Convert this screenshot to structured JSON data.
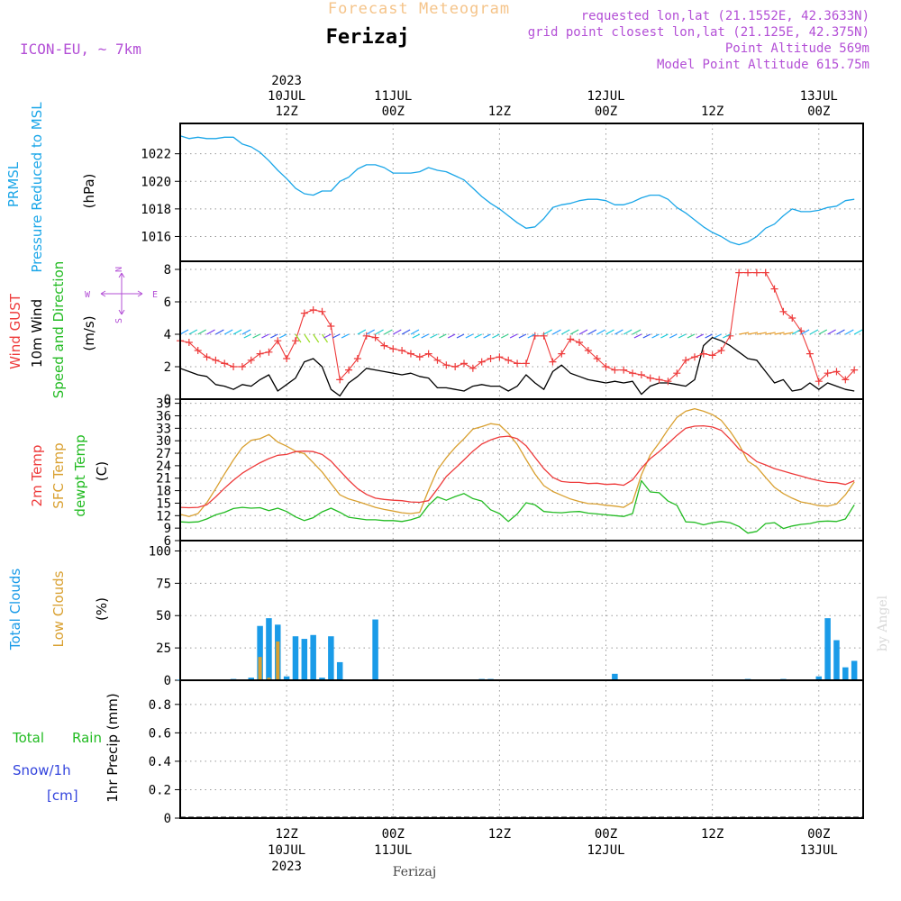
{
  "header": {
    "title": "Forecast Meteogram",
    "location": "Ferizaj",
    "model": "ICON-EU, ~ 7km",
    "requested": "requested lon,lat (21.1552E, 42.3633N)",
    "grid_point": "grid point closest lon,lat (21.125E, 42.375N)",
    "point_altitude": "Point Altitude 569m",
    "model_altitude": "Model Point Altitude 615.75m",
    "footer_location": "Ferizaj",
    "credit": "by Angel"
  },
  "time_axis": {
    "top": [
      {
        "t": 12,
        "lines": [
          "2023",
          "10JUL",
          "12Z"
        ]
      },
      {
        "t": 24,
        "lines": [
          "11JUL",
          "00Z"
        ]
      },
      {
        "t": 36,
        "lines": [
          "12Z"
        ]
      },
      {
        "t": 48,
        "lines": [
          "12JUL",
          "00Z"
        ]
      },
      {
        "t": 60,
        "lines": [
          "12Z"
        ]
      },
      {
        "t": 72,
        "lines": [
          "13JUL",
          "00Z"
        ]
      }
    ],
    "bottom": [
      {
        "t": 12,
        "lines": [
          "12Z",
          "10JUL",
          "2023"
        ]
      },
      {
        "t": 24,
        "lines": [
          "00Z",
          "11JUL"
        ]
      },
      {
        "t": 36,
        "lines": [
          "12Z"
        ]
      },
      {
        "t": 48,
        "lines": [
          "00Z",
          "12JUL"
        ]
      },
      {
        "t": 60,
        "lines": [
          "12Z"
        ]
      },
      {
        "t": 72,
        "lines": [
          "00Z",
          "13JUL"
        ]
      }
    ]
  },
  "labels": {
    "p1_a": "PRMSL",
    "p1_b": "Pressure Reduced to MSL",
    "p1_unit": "(hPa)",
    "p2_a": "Wind GUST",
    "p2_b": "10m Wind",
    "p2_c": "Speed and Direction",
    "p2_unit": "(m/s)",
    "compass_n": "N",
    "compass_s": "S",
    "compass_w": "W",
    "compass_e": "E",
    "p3_a": "2m Temp",
    "p3_b": "SFC Temp",
    "p3_c": "dewpt Temp",
    "p3_unit": "(C)",
    "p4_a": "Total Clouds",
    "p4_b": "Low Clouds",
    "p4_unit": "(%)",
    "p5_a": "Total",
    "p5_b": "Rain",
    "p5_c": "Snow/1h",
    "p5_d": "[cm]",
    "p5_unit": "1hr Precip (mm)"
  },
  "colors": {
    "pressure": "#1aa6e8",
    "gust": "#ee3b3b",
    "wind": "#000000",
    "temp2m": "#ee3b3b",
    "sfc": "#d9a030",
    "dewpt": "#22bb22",
    "total_clouds": "#1a9be8",
    "low_clouds": "#d9a030",
    "rain": "#22bb22",
    "snow": "#3344dd",
    "header_orange": "#f5c48a",
    "header_purple": "#b34fd6"
  },
  "chart_data": [
    {
      "type": "line",
      "name": "pressure",
      "title": "PRMSL Pressure Reduced to MSL",
      "ylabel": "(hPa)",
      "yticks": [
        1016,
        1018,
        1020,
        1022
      ],
      "ylim": [
        1014.2,
        1024.2
      ],
      "x_hours": [
        0,
        1,
        2,
        3,
        4,
        5,
        6,
        7,
        8,
        9,
        10,
        11,
        12,
        13,
        14,
        15,
        16,
        17,
        18,
        19,
        20,
        21,
        22,
        23,
        24,
        25,
        26,
        27,
        28,
        29,
        30,
        31,
        32,
        33,
        34,
        35,
        36,
        37,
        38,
        39,
        40,
        41,
        42,
        43,
        44,
        45,
        46,
        47,
        48,
        49,
        50,
        51,
        52,
        53,
        54,
        55,
        56,
        57,
        58,
        59,
        60,
        61,
        62,
        63,
        64,
        65,
        66,
        67,
        68,
        69,
        70,
        71,
        72,
        73,
        74,
        75,
        76
      ],
      "series": [
        {
          "name": "PRMSL",
          "values": [
            1023.3,
            1023.1,
            1023.2,
            1023.1,
            1023.1,
            1023.2,
            1023.2,
            1022.7,
            1022.5,
            1022.1,
            1021.5,
            1020.8,
            1020.2,
            1019.5,
            1019.1,
            1019.0,
            1019.3,
            1019.3,
            1020.0,
            1020.3,
            1020.9,
            1021.2,
            1021.2,
            1021.0,
            1020.6,
            1020.6,
            1020.6,
            1020.7,
            1021.0,
            1020.8,
            1020.7,
            1020.4,
            1020.1,
            1019.5,
            1018.9,
            1018.4,
            1018.0,
            1017.5,
            1017.0,
            1016.6,
            1016.7,
            1017.3,
            1018.1,
            1018.3,
            1018.4,
            1018.6,
            1018.7,
            1018.7,
            1018.6,
            1018.3,
            1018.3,
            1018.5,
            1018.8,
            1019.0,
            1019.0,
            1018.7,
            1018.1,
            1017.7,
            1017.2,
            1016.7,
            1016.3,
            1016.0,
            1015.6,
            1015.4,
            1015.6,
            1016.0,
            1016.6,
            1016.9,
            1017.5,
            1018.0,
            1017.8,
            1017.8,
            1017.9,
            1018.1,
            1018.2,
            1018.6,
            1018.7
          ]
        }
      ]
    },
    {
      "type": "line",
      "name": "wind",
      "title": "Wind GUST / 10m Wind Speed and Direction",
      "ylabel": "(m/s)",
      "yticks": [
        0,
        2,
        4,
        6,
        8
      ],
      "ylim": [
        0,
        8.5
      ],
      "x_hours": [
        0,
        1,
        2,
        3,
        4,
        5,
        6,
        7,
        8,
        9,
        10,
        11,
        12,
        13,
        14,
        15,
        16,
        17,
        18,
        19,
        20,
        21,
        22,
        23,
        24,
        25,
        26,
        27,
        28,
        29,
        30,
        31,
        32,
        33,
        34,
        35,
        36,
        37,
        38,
        39,
        40,
        41,
        42,
        43,
        44,
        45,
        46,
        47,
        48,
        49,
        50,
        51,
        52,
        53,
        54,
        55,
        56,
        57,
        58,
        59,
        60,
        61,
        62,
        63,
        64,
        65,
        66,
        67,
        68,
        69,
        70,
        71,
        72,
        73,
        74,
        75,
        76
      ],
      "series": [
        {
          "name": "Wind GUST",
          "values": [
            3.6,
            3.5,
            3.0,
            2.6,
            2.4,
            2.2,
            2.0,
            2.0,
            2.4,
            2.8,
            2.9,
            3.6,
            2.5,
            3.6,
            5.3,
            5.5,
            5.4,
            4.5,
            1.2,
            1.8,
            2.5,
            3.9,
            3.8,
            3.3,
            3.1,
            3.0,
            2.8,
            2.6,
            2.8,
            2.4,
            2.1,
            2.0,
            2.2,
            1.9,
            2.3,
            2.5,
            2.6,
            2.4,
            2.2,
            2.2,
            3.9,
            3.9,
            2.3,
            2.8,
            3.7,
            3.5,
            3.0,
            2.5,
            2.0,
            1.8,
            1.8,
            1.6,
            1.5,
            1.3,
            1.2,
            1.1,
            1.6,
            2.4,
            2.6,
            2.8,
            2.7,
            3.0,
            3.9,
            7.8,
            7.8,
            7.8,
            7.8,
            6.8,
            5.4,
            5.0,
            4.2,
            2.8,
            1.1,
            1.6,
            1.7,
            1.2,
            1.8
          ]
        },
        {
          "name": "10m Wind",
          "values": [
            1.9,
            1.7,
            1.5,
            1.4,
            0.9,
            0.8,
            0.6,
            0.9,
            0.8,
            1.2,
            1.5,
            0.5,
            0.9,
            1.3,
            2.3,
            2.5,
            2.0,
            0.6,
            0.2,
            1.0,
            1.4,
            1.9,
            1.8,
            1.7,
            1.6,
            1.5,
            1.6,
            1.4,
            1.3,
            0.7,
            0.7,
            0.6,
            0.5,
            0.8,
            0.9,
            0.8,
            0.8,
            0.5,
            0.8,
            1.5,
            1.0,
            0.6,
            1.7,
            2.1,
            1.6,
            1.4,
            1.2,
            1.1,
            1.0,
            1.1,
            1.0,
            1.1,
            0.3,
            0.8,
            1.0,
            1.0,
            0.9,
            0.8,
            1.2,
            3.3,
            3.8,
            3.6,
            3.3,
            2.9,
            2.5,
            2.4,
            1.7,
            1.0,
            1.2,
            0.5,
            0.6,
            1.0,
            0.6,
            1.0,
            0.8,
            0.6,
            0.5
          ]
        }
      ],
      "direction_arrows": "shown as colored barbs along y=4"
    },
    {
      "type": "line",
      "name": "temperature",
      "title": "2m Temp / SFC Temp / dewpt Temp",
      "ylabel": "(C)",
      "yticks": [
        6,
        9,
        12,
        15,
        18,
        21,
        24,
        27,
        30,
        33,
        36,
        39
      ],
      "ylim": [
        6,
        40
      ],
      "x_hours": [
        0,
        1,
        2,
        3,
        4,
        5,
        6,
        7,
        8,
        9,
        10,
        11,
        12,
        13,
        14,
        15,
        16,
        17,
        18,
        19,
        20,
        21,
        22,
        23,
        24,
        25,
        26,
        27,
        28,
        29,
        30,
        31,
        32,
        33,
        34,
        35,
        36,
        37,
        38,
        39,
        40,
        41,
        42,
        43,
        44,
        45,
        46,
        47,
        48,
        49,
        50,
        51,
        52,
        53,
        54,
        55,
        56,
        57,
        58,
        59,
        60,
        61,
        62,
        63,
        64,
        65,
        66,
        67,
        68,
        69,
        70,
        71,
        72,
        73,
        74,
        75,
        76
      ],
      "series": [
        {
          "name": "2m Temp",
          "values": [
            14.0,
            13.9,
            14.0,
            14.6,
            16.5,
            18.6,
            20.5,
            22.2,
            23.5,
            24.7,
            25.7,
            26.5,
            26.7,
            27.4,
            27.5,
            27.4,
            26.7,
            25.1,
            22.8,
            20.5,
            18.5,
            17.1,
            16.2,
            15.9,
            15.7,
            15.6,
            15.3,
            15.2,
            15.6,
            18.4,
            21.4,
            23.4,
            25.4,
            27.5,
            29.2,
            30.2,
            30.9,
            31.1,
            30.5,
            28.8,
            26.0,
            23.3,
            21.2,
            20.2,
            20.0,
            20.0,
            19.7,
            19.8,
            19.5,
            19.6,
            19.3,
            20.6,
            23.4,
            25.7,
            27.4,
            29.3,
            31.3,
            33.0,
            33.5,
            33.6,
            33.3,
            32.5,
            30.4,
            28.0,
            26.7,
            25.0,
            24.2,
            23.3,
            22.7,
            22.1,
            21.5,
            20.9,
            20.4,
            20.0,
            19.9,
            19.5,
            20.4
          ]
        },
        {
          "name": "SFC Temp",
          "values": [
            12.3,
            11.8,
            12.5,
            15.1,
            18.5,
            22.0,
            25.4,
            28.4,
            30.1,
            30.5,
            31.5,
            29.7,
            28.7,
            27.5,
            26.9,
            24.7,
            22.5,
            19.7,
            17.0,
            16.0,
            15.4,
            14.7,
            14.0,
            13.5,
            13.1,
            12.7,
            12.5,
            12.8,
            18.1,
            23.0,
            25.9,
            28.4,
            30.5,
            32.8,
            33.4,
            34.1,
            33.8,
            31.8,
            29.1,
            25.5,
            22.0,
            19.2,
            17.8,
            16.9,
            16.0,
            15.4,
            14.9,
            14.8,
            14.5,
            14.3,
            14.0,
            15.3,
            21.8,
            26.6,
            29.5,
            32.7,
            35.6,
            37.1,
            37.7,
            37.1,
            36.3,
            34.9,
            32.3,
            29.1,
            25.1,
            23.7,
            21.2,
            18.8,
            17.3,
            16.2,
            15.3,
            14.9,
            14.4,
            14.3,
            14.8,
            17.0,
            20.1
          ]
        },
        {
          "name": "dewpt Temp",
          "values": [
            10.5,
            10.4,
            10.5,
            11.2,
            12.2,
            12.8,
            13.7,
            14.0,
            13.8,
            13.9,
            13.2,
            13.8,
            13.0,
            11.7,
            10.8,
            11.5,
            12.9,
            13.8,
            12.8,
            11.6,
            11.3,
            11.0,
            11.0,
            10.8,
            10.8,
            10.6,
            11.0,
            11.7,
            14.5,
            16.5,
            15.7,
            16.6,
            17.3,
            16.1,
            15.5,
            13.4,
            12.5,
            10.6,
            12.4,
            15.1,
            14.6,
            13.0,
            12.8,
            12.7,
            12.9,
            13.0,
            12.6,
            12.4,
            12.2,
            12.0,
            11.8,
            12.5,
            20.4,
            17.7,
            17.5,
            15.5,
            14.5,
            10.5,
            10.4,
            9.8,
            10.3,
            10.6,
            10.3,
            9.4,
            7.8,
            8.2,
            10.1,
            10.3,
            8.9,
            9.5,
            9.9,
            10.1,
            10.6,
            10.7,
            10.6,
            11.2,
            14.6
          ]
        }
      ]
    },
    {
      "type": "bar",
      "name": "clouds",
      "title": "Total Clouds / Low Clouds",
      "ylabel": "(%)",
      "yticks": [
        0,
        25,
        50,
        75,
        100
      ],
      "ylim": [
        0,
        108
      ],
      "x_hours": [
        0,
        1,
        2,
        3,
        4,
        5,
        6,
        7,
        8,
        9,
        10,
        11,
        12,
        13,
        14,
        15,
        16,
        17,
        18,
        19,
        20,
        21,
        22,
        23,
        24,
        25,
        26,
        27,
        28,
        29,
        30,
        31,
        32,
        33,
        34,
        35,
        36,
        37,
        38,
        39,
        40,
        41,
        42,
        43,
        44,
        45,
        46,
        47,
        48,
        49,
        50,
        51,
        52,
        53,
        54,
        55,
        56,
        57,
        58,
        59,
        60,
        61,
        62,
        63,
        64,
        65,
        66,
        67,
        68,
        69,
        70,
        71,
        72,
        73,
        74,
        75,
        76
      ],
      "series": [
        {
          "name": "Total Clouds",
          "values": [
            0.5,
            0.5,
            0.5,
            0.5,
            0.5,
            0.5,
            1,
            0.5,
            2,
            42,
            48,
            43,
            3,
            34,
            32,
            35,
            2,
            34,
            14,
            0.5,
            0.5,
            0.5,
            47,
            0.5,
            0.5,
            0.5,
            0.5,
            0.5,
            0.5,
            0.5,
            0.5,
            0.5,
            0.5,
            0.5,
            1,
            1,
            0.5,
            0.5,
            0.5,
            0.5,
            0.5,
            0.5,
            0.5,
            0.5,
            0.5,
            0.5,
            0.5,
            0.5,
            0.5,
            5,
            0.5,
            0.5,
            0.5,
            0.5,
            0.5,
            0.5,
            0.5,
            0.5,
            0.5,
            0.5,
            0.5,
            0.5,
            0.5,
            0.5,
            1,
            0.5,
            0.5,
            0.5,
            1,
            0.5,
            0.5,
            0.5,
            3,
            48,
            31,
            10,
            15
          ]
        },
        {
          "name": "Low Clouds",
          "values": [
            0,
            0,
            0,
            0,
            0,
            0,
            0,
            0,
            0,
            18,
            2,
            30,
            0,
            0,
            0,
            0,
            0,
            0,
            0,
            0,
            0,
            0,
            0,
            0,
            0,
            0,
            0,
            0,
            0,
            0,
            0,
            0,
            0,
            0,
            0,
            0,
            0,
            0,
            0,
            0,
            0,
            0,
            0,
            0,
            0,
            0,
            0,
            0,
            0,
            0,
            0,
            0,
            0,
            0,
            0,
            0,
            0,
            0,
            0,
            0,
            0,
            0,
            0,
            0,
            0,
            0,
            0,
            0,
            0,
            0,
            0,
            0,
            0,
            0,
            0,
            0,
            0
          ]
        }
      ]
    },
    {
      "type": "bar",
      "name": "precip",
      "title": "1hr Precip (mm)",
      "ylabel": "1hr Precip (mm)",
      "yticks": [
        0,
        0.2,
        0.4,
        0.6,
        0.8
      ],
      "ylim": [
        0,
        0.97
      ],
      "series": [
        {
          "name": "Total Rain",
          "values": []
        },
        {
          "name": "Snow/1h [cm]",
          "values": []
        }
      ]
    }
  ]
}
